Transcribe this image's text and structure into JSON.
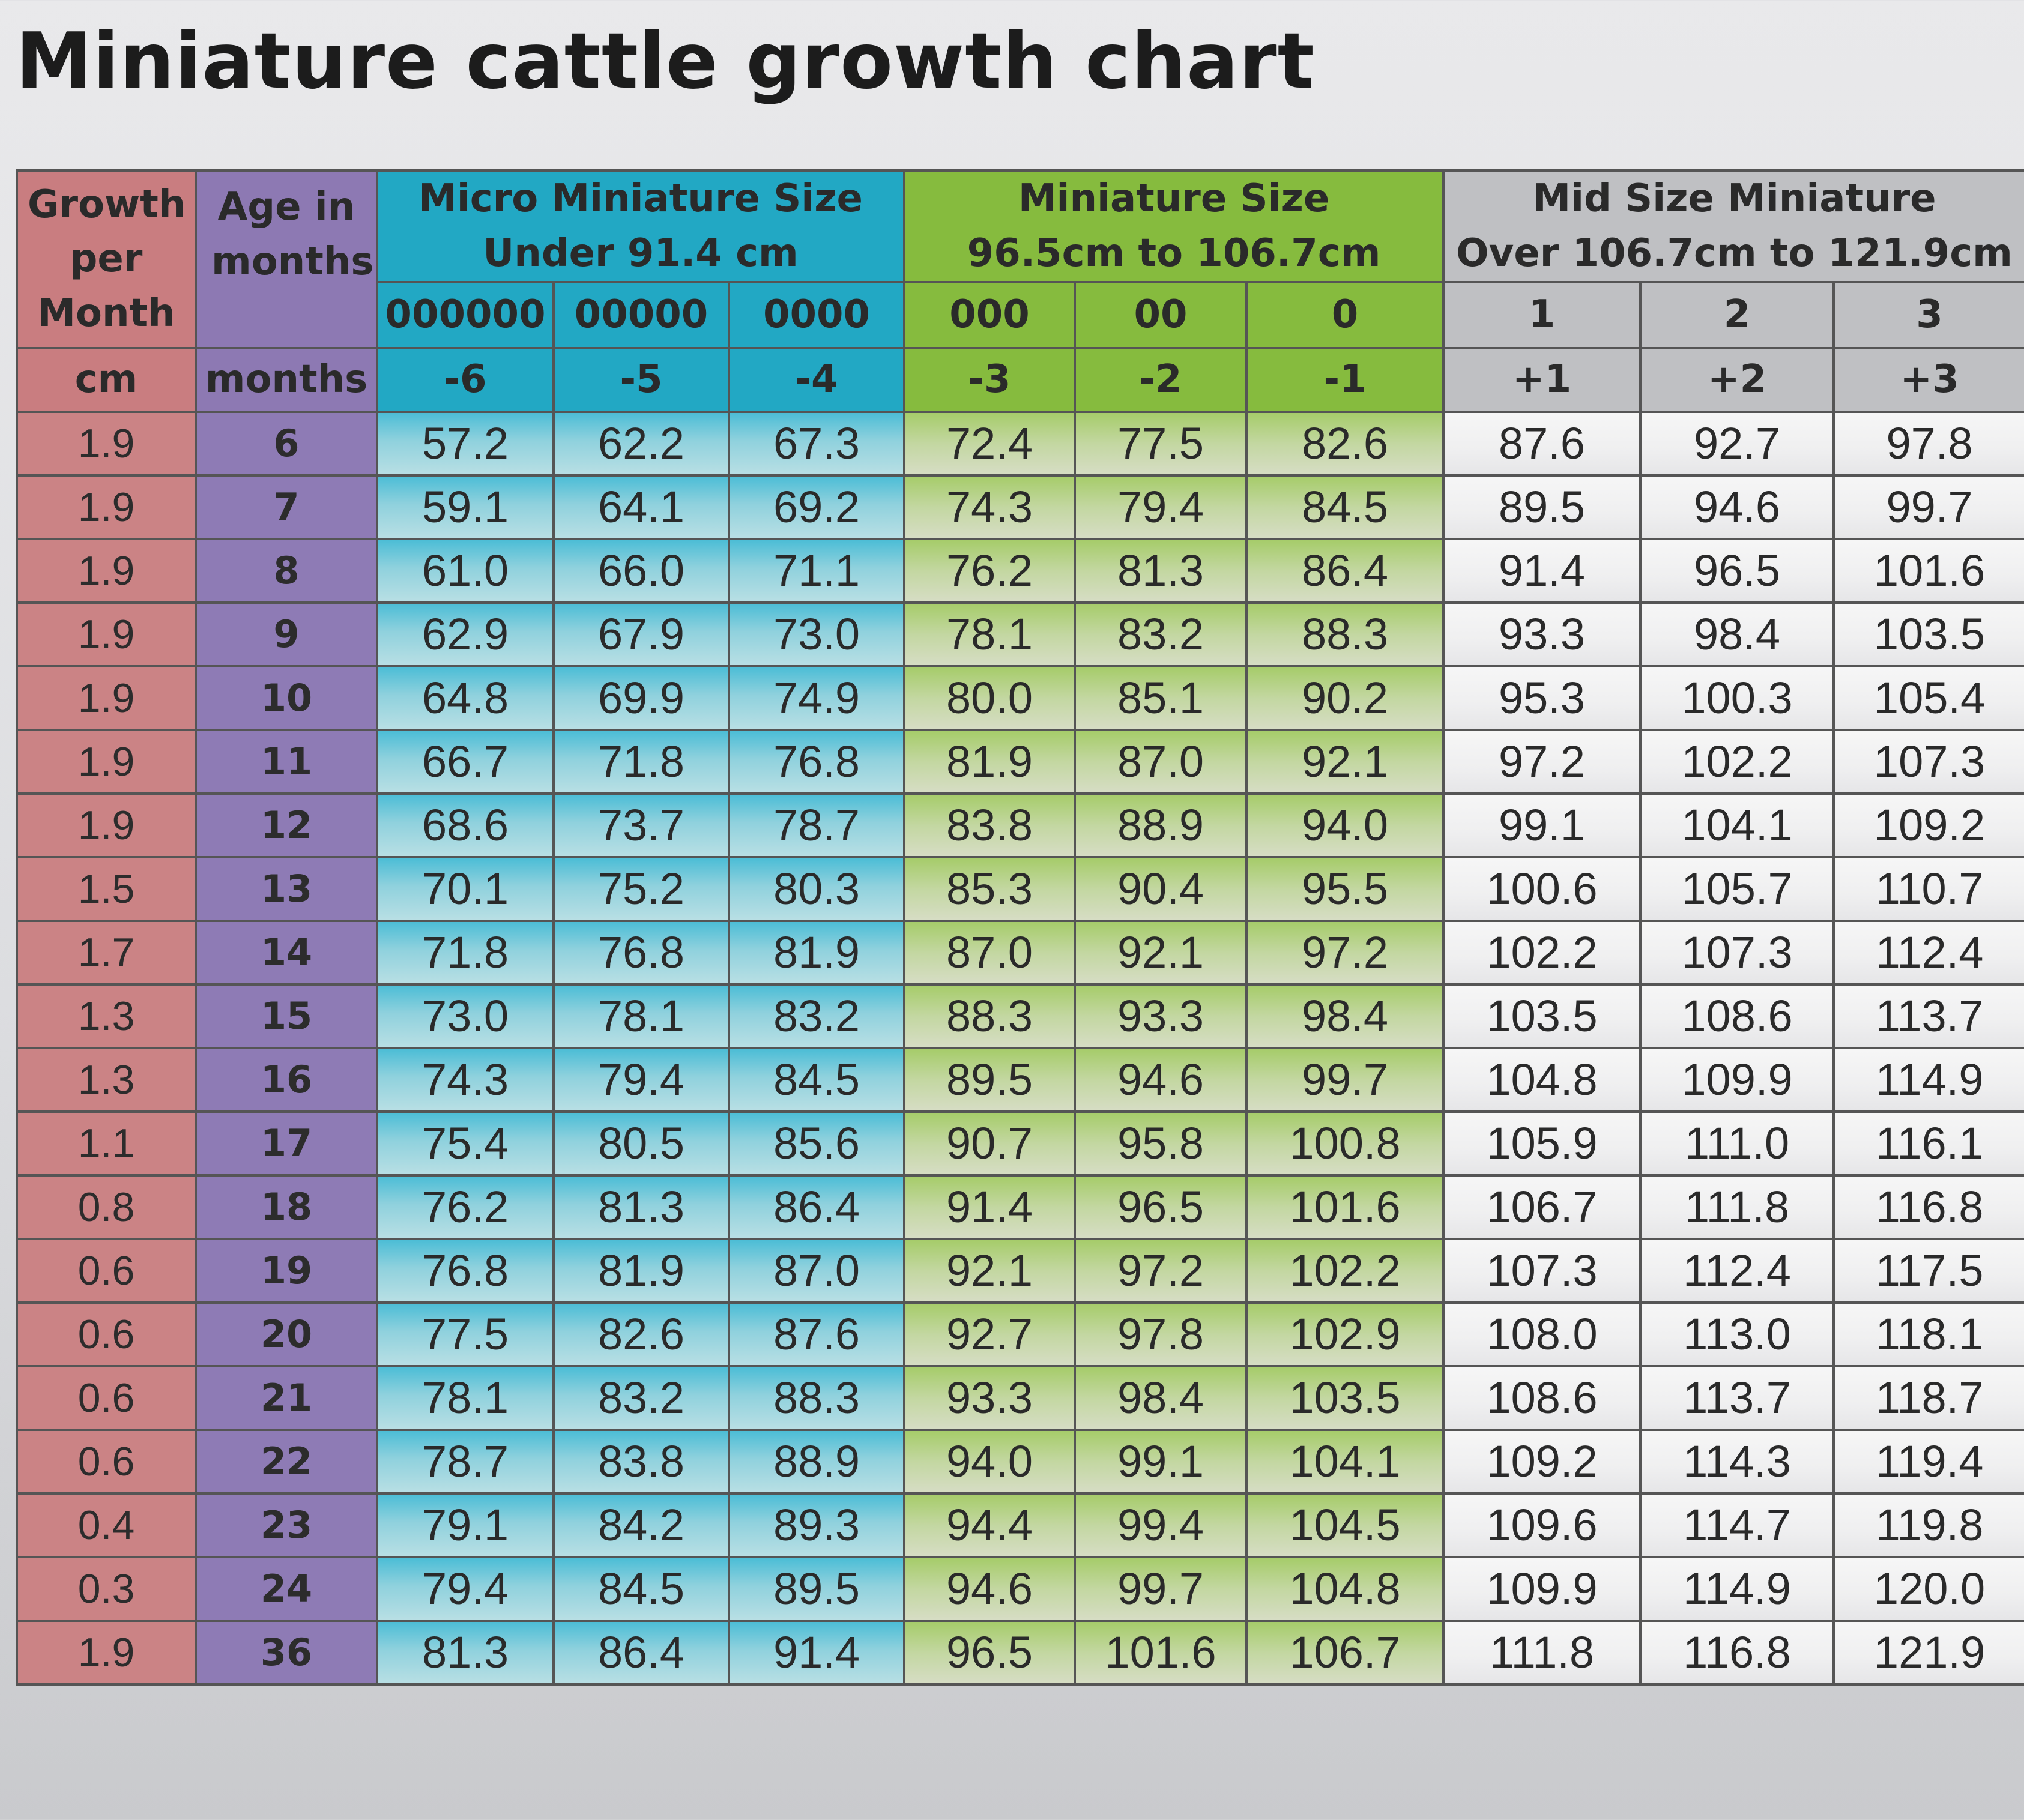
{
  "title": "Miniature cattle growth chart",
  "chart_data": {
    "type": "table",
    "title": "Miniature cattle growth chart",
    "header": {
      "growth_label": "Growth per Month",
      "age_label": "Age in months",
      "groups": [
        {
          "line1": "Micro Miniature Size",
          "line2": "Under 91.4 cm"
        },
        {
          "line1": "Miniature Size",
          "line2": "96.5cm to 106.7cm"
        },
        {
          "line1": "Mid Size Miniature",
          "line2": "Over 106.7cm to 121.9cm"
        }
      ],
      "frame_sizes": [
        "000000",
        "00000",
        "0000",
        "000",
        "00",
        "0",
        "1",
        "2",
        "3"
      ],
      "deviations": [
        "-6",
        "-5",
        "-4",
        "-3",
        "-2",
        "-1",
        "+1",
        "+2",
        "+3"
      ],
      "units": {
        "growth": "cm",
        "age": "months"
      }
    },
    "rows": [
      {
        "growth": "1.9",
        "age": "6",
        "heights": [
          "57.2",
          "62.2",
          "67.3",
          "72.4",
          "77.5",
          "82.6",
          "87.6",
          "92.7",
          "97.8"
        ]
      },
      {
        "growth": "1.9",
        "age": "7",
        "heights": [
          "59.1",
          "64.1",
          "69.2",
          "74.3",
          "79.4",
          "84.5",
          "89.5",
          "94.6",
          "99.7"
        ]
      },
      {
        "growth": "1.9",
        "age": "8",
        "heights": [
          "61.0",
          "66.0",
          "71.1",
          "76.2",
          "81.3",
          "86.4",
          "91.4",
          "96.5",
          "101.6"
        ]
      },
      {
        "growth": "1.9",
        "age": "9",
        "heights": [
          "62.9",
          "67.9",
          "73.0",
          "78.1",
          "83.2",
          "88.3",
          "93.3",
          "98.4",
          "103.5"
        ]
      },
      {
        "growth": "1.9",
        "age": "10",
        "heights": [
          "64.8",
          "69.9",
          "74.9",
          "80.0",
          "85.1",
          "90.2",
          "95.3",
          "100.3",
          "105.4"
        ]
      },
      {
        "growth": "1.9",
        "age": "11",
        "heights": [
          "66.7",
          "71.8",
          "76.8",
          "81.9",
          "87.0",
          "92.1",
          "97.2",
          "102.2",
          "107.3"
        ]
      },
      {
        "growth": "1.9",
        "age": "12",
        "heights": [
          "68.6",
          "73.7",
          "78.7",
          "83.8",
          "88.9",
          "94.0",
          "99.1",
          "104.1",
          "109.2"
        ]
      },
      {
        "growth": "1.5",
        "age": "13",
        "heights": [
          "70.1",
          "75.2",
          "80.3",
          "85.3",
          "90.4",
          "95.5",
          "100.6",
          "105.7",
          "110.7"
        ]
      },
      {
        "growth": "1.7",
        "age": "14",
        "heights": [
          "71.8",
          "76.8",
          "81.9",
          "87.0",
          "92.1",
          "97.2",
          "102.2",
          "107.3",
          "112.4"
        ]
      },
      {
        "growth": "1.3",
        "age": "15",
        "heights": [
          "73.0",
          "78.1",
          "83.2",
          "88.3",
          "93.3",
          "98.4",
          "103.5",
          "108.6",
          "113.7"
        ]
      },
      {
        "growth": "1.3",
        "age": "16",
        "heights": [
          "74.3",
          "79.4",
          "84.5",
          "89.5",
          "94.6",
          "99.7",
          "104.8",
          "109.9",
          "114.9"
        ]
      },
      {
        "growth": "1.1",
        "age": "17",
        "heights": [
          "75.4",
          "80.5",
          "85.6",
          "90.7",
          "95.8",
          "100.8",
          "105.9",
          "111.0",
          "116.1"
        ]
      },
      {
        "growth": "0.8",
        "age": "18",
        "heights": [
          "76.2",
          "81.3",
          "86.4",
          "91.4",
          "96.5",
          "101.6",
          "106.7",
          "111.8",
          "116.8"
        ]
      },
      {
        "growth": "0.6",
        "age": "19",
        "heights": [
          "76.8",
          "81.9",
          "87.0",
          "92.1",
          "97.2",
          "102.2",
          "107.3",
          "112.4",
          "117.5"
        ]
      },
      {
        "growth": "0.6",
        "age": "20",
        "heights": [
          "77.5",
          "82.6",
          "87.6",
          "92.7",
          "97.8",
          "102.9",
          "108.0",
          "113.0",
          "118.1"
        ]
      },
      {
        "growth": "0.6",
        "age": "21",
        "heights": [
          "78.1",
          "83.2",
          "88.3",
          "93.3",
          "98.4",
          "103.5",
          "108.6",
          "113.7",
          "118.7"
        ]
      },
      {
        "growth": "0.6",
        "age": "22",
        "heights": [
          "78.7",
          "83.8",
          "88.9",
          "94.0",
          "99.1",
          "104.1",
          "109.2",
          "114.3",
          "119.4"
        ]
      },
      {
        "growth": "0.4",
        "age": "23",
        "heights": [
          "79.1",
          "84.2",
          "89.3",
          "94.4",
          "99.4",
          "104.5",
          "109.6",
          "114.7",
          "119.8"
        ]
      },
      {
        "growth": "0.3",
        "age": "24",
        "heights": [
          "79.4",
          "84.5",
          "89.5",
          "94.6",
          "99.7",
          "104.8",
          "109.9",
          "114.9",
          "120.0"
        ]
      },
      {
        "growth": "1.9",
        "age": "36",
        "heights": [
          "81.3",
          "86.4",
          "91.4",
          "96.5",
          "101.6",
          "106.7",
          "111.8",
          "116.8",
          "121.9"
        ]
      }
    ]
  }
}
